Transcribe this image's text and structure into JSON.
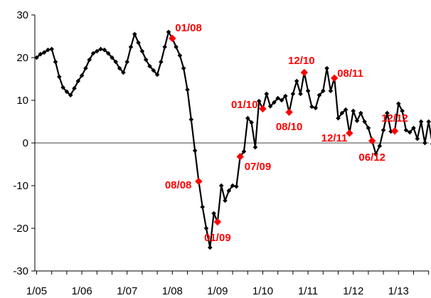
{
  "chart_data": {
    "type": "line",
    "x_start": "1/05",
    "x_step": "month",
    "xticks": [
      "1/05",
      "1/06",
      "1/07",
      "1/08",
      "1/09",
      "1/10",
      "1/11",
      "1/12",
      "1/13"
    ],
    "ylim": [
      -30,
      30
    ],
    "yticks": [
      30,
      20,
      10,
      0,
      -10,
      -20,
      -30
    ],
    "grid": false,
    "zero_line": true,
    "series": [
      {
        "color": "#000000",
        "marker": "diamond",
        "values": [
          20,
          20.8,
          21.2,
          21.8,
          22,
          19,
          15.5,
          13,
          12,
          11.2,
          12.8,
          14.5,
          15.8,
          17.5,
          19.5,
          21,
          21.5,
          22,
          21.8,
          21,
          20,
          19,
          17.5,
          16.5,
          19,
          22.5,
          25.5,
          23.5,
          21.5,
          19.5,
          18,
          17,
          16,
          19,
          22.5,
          26,
          24.5,
          22.5,
          20.5,
          17.5,
          12.5,
          5.5,
          -1.8,
          -9,
          -15,
          -20,
          -24.5,
          -16.5,
          -18.5,
          -10,
          -13.5,
          -11.2,
          -10,
          -10.2,
          -3.2,
          -2,
          5.8,
          4.8,
          -1,
          9.8,
          8,
          11.5,
          8.6,
          9.5,
          10.5,
          10,
          11,
          7.2,
          11.5,
          14.5,
          11.5,
          16.5,
          12.2,
          8.5,
          8.2,
          11.2,
          12.2,
          17.5,
          12.2,
          15.2,
          5.8,
          7,
          7.8,
          2.3,
          7.5,
          5.2,
          7,
          5,
          3.5,
          0.5,
          -2.6,
          -0.7,
          3,
          7,
          2.7,
          2.8,
          9.2,
          7.5,
          3,
          2.5,
          3.5,
          1,
          5,
          0,
          5,
          -0.2
        ]
      }
    ],
    "annotations": [
      {
        "label": "01/08",
        "index": 36,
        "color": "#ff0000"
      },
      {
        "label": "08/08",
        "index": 43,
        "color": "#ff0000"
      },
      {
        "label": "01/09",
        "index": 48,
        "color": "#ff0000"
      },
      {
        "label": "07/09",
        "index": 54,
        "color": "#ff0000"
      },
      {
        "label": "01/10",
        "index": 60,
        "color": "#ff0000"
      },
      {
        "label": "08/10",
        "index": 67,
        "color": "#ff0000"
      },
      {
        "label": "12/10",
        "index": 71,
        "color": "#ff0000"
      },
      {
        "label": "08/11",
        "index": 79,
        "color": "#ff0000"
      },
      {
        "label": "12/11",
        "index": 83,
        "color": "#ff0000"
      },
      {
        "label": "06/12",
        "index": 89,
        "color": "#ff0000"
      },
      {
        "label": "12/12",
        "index": 95,
        "color": "#ff0000"
      }
    ]
  }
}
